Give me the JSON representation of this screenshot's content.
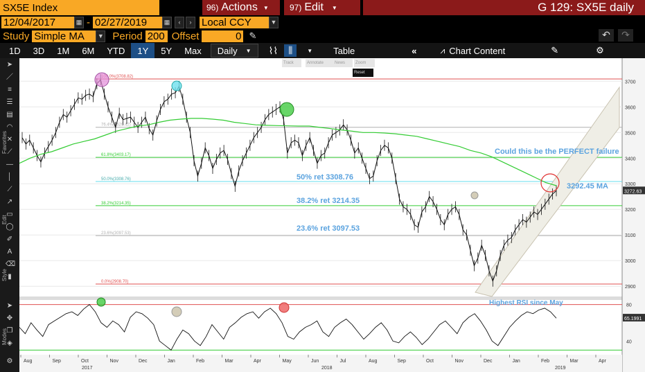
{
  "header": {
    "security": "SX5E Index",
    "actions_label": "Actions",
    "actions_key": "96)",
    "edit_label": "Edit",
    "edit_key": "97)",
    "chart_title": "G 129: SX5E daily"
  },
  "dates": {
    "start": "12/04/2017",
    "end": "02/27/2019",
    "currency": "Local CCY",
    "separator": "-"
  },
  "study": {
    "label": "Study",
    "value": "Simple MA",
    "period_label": "Period",
    "period_value": "200",
    "offset_label": "Offset",
    "offset_value": "0"
  },
  "toolbar": {
    "ranges": [
      "1D",
      "3D",
      "1M",
      "6M",
      "YTD",
      "1Y",
      "5Y",
      "Max"
    ],
    "active_range": "1Y",
    "frequency": "Daily",
    "table_label": "Table",
    "chart_content_label": "Chart Content"
  },
  "mini_toolbar": {
    "track": "Track",
    "annotate": "Annotate",
    "news": "News",
    "zoom": "Zoom",
    "reset": "Reset"
  },
  "sidebar_labels": {
    "favorites": "Favorites",
    "edit": "Edit",
    "style": "Style",
    "modes": "Modes"
  },
  "chart_data": {
    "type": "line",
    "price_axis": {
      "ticks": [
        2900,
        3000,
        3100,
        3200,
        3300,
        3400,
        3500,
        3600,
        3700
      ],
      "ylim": [
        2860,
        3790
      ],
      "last_value_label": "3272.63"
    },
    "rsi_axis": {
      "ticks": [
        40,
        80
      ],
      "ylim": [
        25,
        85
      ],
      "last_value_label": "65.1991"
    },
    "x_ticks": [
      "Aug",
      "Sep",
      "Oct",
      "Nov",
      "Dec",
      "Jan",
      "Feb",
      "Mar",
      "Apr",
      "May",
      "Jun",
      "Jul",
      "Aug",
      "Sep",
      "Oct",
      "Nov",
      "Dec",
      "Jan",
      "Feb",
      "Mar",
      "Apr"
    ],
    "year_labels": [
      "2017",
      "2018",
      "2019"
    ],
    "fib_levels": [
      {
        "label": "100.0%(3708.82)",
        "value": 3708.82,
        "color": "#e05050"
      },
      {
        "label": "76.4%(3520.42)",
        "value": 3520.42,
        "color": "#b0b0b0"
      },
      {
        "label": "61.8%(3403.17)",
        "value": 3403.17,
        "color": "#33cc33"
      },
      {
        "label": "50.0%(3308.76)",
        "value": 3308.76,
        "color": "#66ddee"
      },
      {
        "label": "38.2%(3214.35)",
        "value": 3214.35,
        "color": "#33cc33"
      },
      {
        "label": "23.6%(3097.53)",
        "value": 3097.53,
        "color": "#b0b0b0"
      },
      {
        "label": "0.0%(2908.70)",
        "value": 2908.7,
        "color": "#e05050"
      }
    ],
    "annotations": {
      "failure": "Could this be the PERFECT failure",
      "ret50": "50% ret 3308.76",
      "ret382": "38.2% ret 3214.35",
      "ret236": "23.6% ret 3097.53",
      "ma": "3292.45 MA",
      "rsi": "Highest RSI since May"
    },
    "price_series": [
      3480,
      3455,
      3470,
      3440,
      3410,
      3385,
      3420,
      3445,
      3470,
      3500,
      3540,
      3570,
      3560,
      3585,
      3610,
      3635,
      3630,
      3645,
      3650,
      3640,
      3690,
      3706,
      3650,
      3600,
      3560,
      3520,
      3575,
      3550,
      3555,
      3560,
      3540,
      3520,
      3540,
      3560,
      3515,
      3490,
      3545,
      3590,
      3620,
      3630,
      3650,
      3655,
      3680,
      3630,
      3560,
      3500,
      3390,
      3330,
      3380,
      3440,
      3410,
      3360,
      3395,
      3420,
      3430,
      3395,
      3340,
      3290,
      3350,
      3390,
      3420,
      3450,
      3480,
      3500,
      3520,
      3550,
      3570,
      3580,
      3590,
      3600,
      3550,
      3420,
      3460,
      3470,
      3460,
      3410,
      3450,
      3480,
      3430,
      3380,
      3410,
      3420,
      3460,
      3490,
      3500,
      3510,
      3530,
      3510,
      3470,
      3420,
      3440,
      3400,
      3360,
      3320,
      3330,
      3390,
      3430,
      3450,
      3440,
      3400,
      3320,
      3240,
      3210,
      3200,
      3180,
      3140,
      3130,
      3190,
      3210,
      3250,
      3230,
      3200,
      3160,
      3140,
      3180,
      3200,
      3210,
      3180,
      3120,
      3100,
      3040,
      2980,
      3010,
      3060,
      3020,
      2960,
      2920,
      2960,
      3020,
      3060,
      3080,
      3090,
      3120,
      3140,
      3160,
      3150,
      3170,
      3190,
      3180,
      3200,
      3220,
      3240,
      3260,
      3272.63
    ],
    "ma_series": [
      3380,
      3400,
      3415,
      3425,
      3440,
      3455,
      3465,
      3475,
      3490,
      3505,
      3515,
      3525,
      3530,
      3540,
      3548,
      3552,
      3555,
      3555,
      3552,
      3548,
      3540,
      3535,
      3530,
      3528,
      3527,
      3526,
      3525,
      3525,
      3520,
      3515,
      3510,
      3505,
      3500,
      3500,
      3498,
      3495,
      3490,
      3485,
      3475,
      3465,
      3455,
      3445,
      3430,
      3420,
      3405,
      3385,
      3365,
      3345,
      3325,
      3305,
      3292.45
    ],
    "rsi_series": [
      55,
      48,
      60,
      52,
      45,
      58,
      62,
      66,
      70,
      72,
      68,
      75,
      80,
      72,
      60,
      55,
      62,
      58,
      50,
      66,
      72,
      70,
      65,
      58,
      40,
      35,
      30,
      42,
      52,
      48,
      40,
      35,
      45,
      58,
      50,
      42,
      55,
      60,
      66,
      70,
      72,
      65,
      72,
      76,
      70,
      60,
      45,
      42,
      50,
      55,
      58,
      62,
      50,
      45,
      55,
      60,
      64,
      58,
      50,
      42,
      48,
      55,
      60,
      52,
      40,
      38,
      45,
      50,
      44,
      36,
      42,
      50,
      58,
      62,
      55,
      48,
      60,
      66,
      70,
      62,
      52,
      40,
      35,
      45,
      55,
      62,
      68,
      72,
      70,
      74,
      76,
      72,
      65
    ]
  }
}
